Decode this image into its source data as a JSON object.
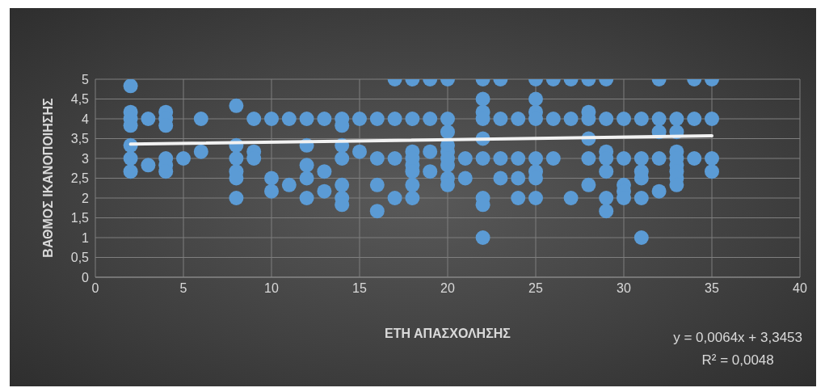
{
  "chart_data": {
    "type": "scatter",
    "xlabel": "ΕΤΗ ΑΠΑΣΧΟΛΗΣΗΣ",
    "ylabel": "ΒΑΘΜΟΣ ΙΚΑΝΟΠΟΙΗΣΗΣ",
    "xlim": [
      0,
      40
    ],
    "xticks": [
      0,
      5,
      10,
      15,
      20,
      25,
      30,
      35,
      40
    ],
    "ylim": [
      0,
      5
    ],
    "yticks": [
      0,
      {
        "value": 0.5,
        "label": "0,5"
      },
      1,
      {
        "value": 1.5,
        "label": "1,5"
      },
      2,
      {
        "value": 2.5,
        "label": "2,5"
      },
      3,
      {
        "value": 3.5,
        "label": "3,5"
      },
      4,
      {
        "value": 4.5,
        "label": "4,5"
      },
      5
    ],
    "grid": true,
    "annotations": [
      "y = 0,0064x + 3,3453",
      "R² = 0,0048"
    ],
    "series": [
      {
        "marker": "circle",
        "color": "#5b9bd5",
        "x": [
          2,
          2,
          2,
          2,
          2,
          2,
          2,
          3,
          3,
          4,
          4,
          4,
          4,
          4,
          4,
          5,
          6,
          6,
          8,
          8,
          8,
          8,
          8,
          8,
          9,
          9,
          9,
          10,
          10,
          10,
          11,
          11,
          12,
          12,
          12,
          12,
          12,
          13,
          13,
          13,
          14,
          14,
          14,
          14,
          14,
          14,
          14,
          15,
          15,
          16,
          16,
          16,
          16,
          17,
          17,
          17,
          17,
          18,
          18,
          18,
          18,
          18,
          18,
          18,
          18,
          19,
          19,
          19,
          19,
          20,
          20,
          20,
          20,
          20,
          20,
          20,
          20,
          20,
          21,
          21,
          22,
          22,
          22,
          22,
          22,
          22,
          22,
          22,
          22,
          23,
          23,
          23,
          23,
          24,
          24,
          24,
          24,
          25,
          25,
          25,
          25,
          25,
          25,
          25,
          25,
          26,
          26,
          26,
          27,
          27,
          27,
          28,
          28,
          28,
          28,
          28,
          28,
          29,
          29,
          29,
          29,
          29,
          29,
          29,
          30,
          30,
          30,
          30,
          30,
          31,
          31,
          31,
          31,
          31,
          31,
          32,
          32,
          32,
          32,
          32,
          33,
          33,
          33,
          33,
          33,
          33,
          33,
          33,
          34,
          34,
          34,
          35,
          35,
          35,
          35
        ],
        "values": [
          4.83,
          4.17,
          4,
          3.83,
          3.33,
          3,
          2.67,
          4,
          2.83,
          4.17,
          4,
          3.83,
          3,
          2.83,
          2.67,
          3,
          4,
          3.17,
          4.33,
          3.33,
          3,
          2.67,
          2.5,
          2,
          4,
          3.17,
          3,
          4,
          2.5,
          2.17,
          4,
          2.33,
          4,
          3.33,
          2.83,
          2.5,
          2,
          4,
          2.67,
          2.17,
          4,
          3.83,
          3.33,
          3,
          2.33,
          2,
          1.83,
          4,
          3.17,
          4,
          3,
          2.33,
          1.67,
          5,
          4,
          3,
          2,
          5,
          4,
          3.17,
          3,
          2.83,
          2.67,
          2.33,
          2,
          5,
          4,
          3.17,
          2.67,
          5,
          4,
          3.67,
          3.33,
          3.17,
          3,
          2.83,
          2.5,
          2.33,
          3,
          2.5,
          5,
          4.5,
          4.17,
          4,
          3.5,
          3,
          2,
          1.83,
          1,
          5,
          4,
          3,
          2.5,
          4,
          3,
          2.5,
          2,
          5,
          4.5,
          4.17,
          4,
          3,
          2.67,
          2.5,
          2,
          5,
          4,
          3,
          5,
          4,
          2,
          5,
          4.17,
          4,
          3.5,
          3,
          2.33,
          5,
          4,
          3.17,
          3,
          2.67,
          2,
          1.67,
          4,
          3,
          2.33,
          2.17,
          2,
          4,
          3,
          2.67,
          2.5,
          2,
          1,
          5,
          4,
          3.67,
          3,
          2.17,
          4,
          3.67,
          3.17,
          3,
          2.83,
          2.67,
          2.5,
          2.33,
          5,
          4,
          3,
          5,
          4,
          3,
          2.67
        ]
      },
      {
        "type": "line",
        "marker": "none",
        "color": "#f2f2f2",
        "x": [
          2,
          35
        ],
        "values": [
          3.36,
          3.57
        ]
      }
    ]
  }
}
